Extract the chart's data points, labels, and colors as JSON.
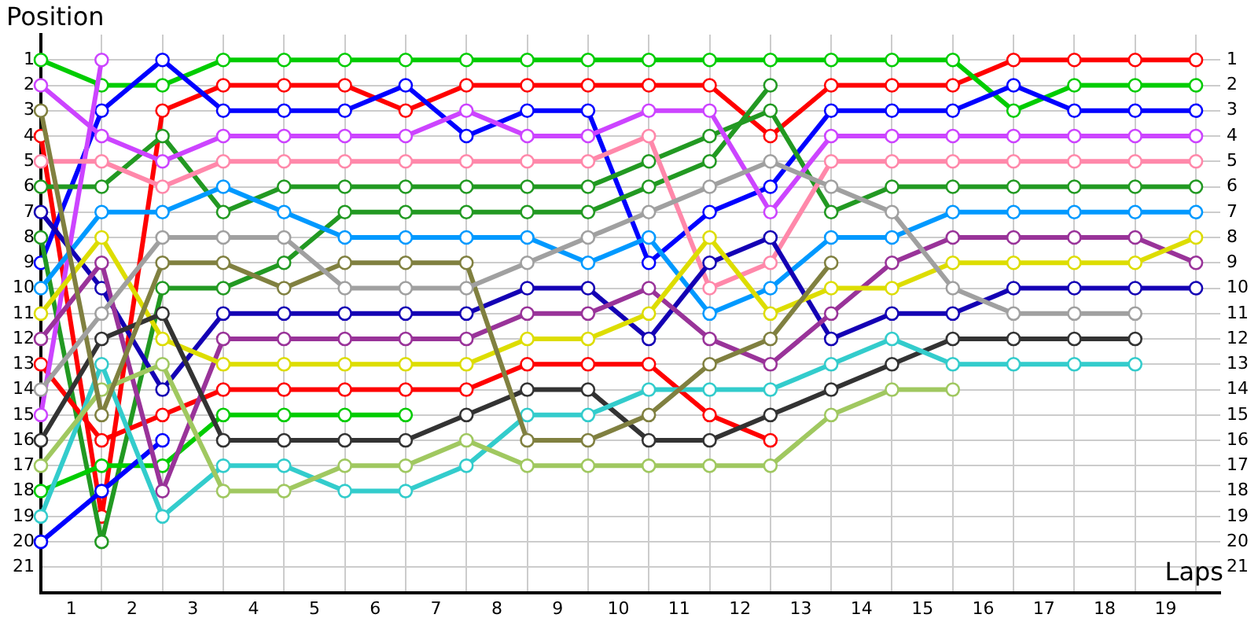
{
  "chart_data": {
    "type": "line",
    "xlabel": "Laps",
    "ylabel": "Position",
    "marker": "circle",
    "grid": true,
    "x": [
      0,
      1,
      2,
      3,
      4,
      5,
      6,
      7,
      8,
      9,
      10,
      11,
      12,
      13,
      14,
      15,
      16,
      17,
      18,
      19
    ],
    "xlim": [
      0,
      19.4
    ],
    "xticks": [
      {
        "value": 0,
        "label": null
      },
      {
        "value": 0.5,
        "label": "1"
      },
      {
        "value": 1,
        "label": null
      },
      {
        "value": 1.5,
        "label": "2"
      },
      {
        "value": 2,
        "label": null
      },
      {
        "value": 2.5,
        "label": "3"
      },
      {
        "value": 3,
        "label": null
      },
      {
        "value": 3.5,
        "label": "4"
      },
      {
        "value": 4,
        "label": null
      },
      {
        "value": 4.5,
        "label": "5"
      },
      {
        "value": 5,
        "label": null
      },
      {
        "value": 5.5,
        "label": "6"
      },
      {
        "value": 6,
        "label": null
      },
      {
        "value": 6.5,
        "label": "7"
      },
      {
        "value": 7,
        "label": null
      },
      {
        "value": 7.5,
        "label": "8"
      },
      {
        "value": 8,
        "label": null
      },
      {
        "value": 8.5,
        "label": "9"
      },
      {
        "value": 9,
        "label": null
      },
      {
        "value": 9.5,
        "label": "10"
      },
      {
        "value": 10,
        "label": null
      },
      {
        "value": 10.5,
        "label": "11"
      },
      {
        "value": 11,
        "label": null
      },
      {
        "value": 11.5,
        "label": "12"
      },
      {
        "value": 12,
        "label": null
      },
      {
        "value": 12.5,
        "label": "13"
      },
      {
        "value": 13,
        "label": null
      },
      {
        "value": 13.5,
        "label": "14"
      },
      {
        "value": 14,
        "label": null
      },
      {
        "value": 14.5,
        "label": "15"
      },
      {
        "value": 15,
        "label": null
      },
      {
        "value": 15.5,
        "label": "16"
      },
      {
        "value": 16,
        "label": null
      },
      {
        "value": 16.5,
        "label": "17"
      },
      {
        "value": 17,
        "label": null
      },
      {
        "value": 17.5,
        "label": "18"
      },
      {
        "value": 18,
        "label": null
      },
      {
        "value": 18.5,
        "label": "19"
      },
      {
        "value": 19,
        "label": null
      }
    ],
    "ylim": [
      22,
      0
    ],
    "yticks": [
      1,
      2,
      3,
      4,
      5,
      6,
      7,
      8,
      9,
      10,
      11,
      12,
      13,
      14,
      15,
      16,
      17,
      18,
      19,
      20,
      21
    ],
    "y2lim": [
      22,
      0
    ],
    "y2ticks": [
      1,
      2,
      3,
      4,
      5,
      6,
      7,
      8,
      9,
      10,
      11,
      12,
      13,
      14,
      15,
      16,
      17,
      18,
      19,
      20,
      21
    ],
    "series": [
      {
        "color": "#a0a0a0",
        "values": [
          14,
          11,
          8,
          8,
          8,
          10,
          10,
          10,
          9,
          8,
          7,
          6,
          5,
          6,
          7,
          10,
          11,
          11,
          11,
          null
        ]
      },
      {
        "color": "#808040",
        "values": [
          3,
          15,
          9,
          9,
          10,
          9,
          9,
          9,
          16,
          16,
          15,
          13,
          12,
          9,
          null,
          null,
          null,
          null,
          null,
          null
        ]
      },
      {
        "color": "#a0c860",
        "values": [
          17,
          14,
          13,
          18,
          18,
          17,
          17,
          16,
          17,
          17,
          17,
          17,
          17,
          15,
          14,
          14,
          null,
          null,
          null,
          null
        ]
      },
      {
        "color": "#33cccc",
        "values": [
          19,
          13,
          19,
          17,
          17,
          18,
          18,
          17,
          15,
          15,
          14,
          14,
          14,
          13,
          12,
          13,
          13,
          13,
          13,
          null
        ]
      },
      {
        "color": "#333333",
        "values": [
          16,
          12,
          11,
          16,
          16,
          16,
          16,
          15,
          14,
          14,
          16,
          16,
          15,
          14,
          13,
          12,
          12,
          12,
          12,
          null
        ]
      },
      {
        "color": "#dddd00",
        "values": [
          11,
          8,
          12,
          13,
          13,
          13,
          13,
          13,
          12,
          12,
          11,
          8,
          11,
          10,
          10,
          9,
          9,
          9,
          9,
          8
        ]
      },
      {
        "color": "#993399",
        "values": [
          12,
          9,
          18,
          12,
          12,
          12,
          12,
          12,
          11,
          11,
          10,
          12,
          13,
          11,
          9,
          8,
          8,
          8,
          8,
          9
        ]
      },
      {
        "color": "#1400b4",
        "values": [
          7,
          10,
          14,
          11,
          11,
          11,
          11,
          11,
          10,
          10,
          12,
          9,
          8,
          12,
          11,
          11,
          10,
          10,
          10,
          10
        ]
      },
      {
        "color": "#0099ff",
        "values": [
          10,
          7,
          7,
          6,
          7,
          8,
          8,
          8,
          8,
          9,
          8,
          11,
          10,
          8,
          8,
          7,
          7,
          7,
          7,
          7
        ]
      },
      {
        "color": "#ff88aa",
        "values": [
          5,
          5,
          6,
          5,
          5,
          5,
          5,
          5,
          5,
          5,
          4,
          10,
          9,
          5,
          5,
          5,
          5,
          5,
          5,
          5
        ]
      },
      {
        "color": "#cc44ff",
        "values": [
          2,
          4,
          5,
          4,
          4,
          4,
          4,
          3,
          4,
          4,
          3,
          3,
          7,
          4,
          4,
          4,
          4,
          4,
          4,
          4
        ]
      },
      {
        "color": "#cc44ff",
        "values": [
          15,
          1,
          null,
          null,
          null,
          null,
          null,
          null,
          null,
          null,
          null,
          null,
          null,
          null,
          null,
          null,
          null,
          null,
          null,
          null
        ]
      },
      {
        "color": "#0000ff",
        "values": [
          20,
          18,
          16,
          null,
          null,
          null,
          null,
          null,
          null,
          null,
          null,
          null,
          null,
          null,
          null,
          null,
          null,
          null,
          null,
          null
        ]
      },
      {
        "color": "#00cc00",
        "values": [
          18,
          17,
          17,
          15,
          15,
          15,
          15,
          null,
          null,
          null,
          null,
          null,
          null,
          null,
          null,
          null,
          null,
          null,
          null,
          null
        ]
      },
      {
        "color": "#ff0000",
        "values": [
          13,
          16,
          15,
          14,
          14,
          14,
          14,
          14,
          13,
          13,
          13,
          15,
          16,
          null,
          null,
          null,
          null,
          null,
          null,
          null
        ]
      },
      {
        "color": "#229922",
        "values": [
          8,
          20,
          10,
          10,
          9,
          7,
          7,
          7,
          7,
          7,
          6,
          5,
          2,
          null,
          null,
          null,
          null,
          null,
          null,
          null
        ]
      },
      {
        "color": "#229922",
        "values": [
          6,
          6,
          4,
          7,
          6,
          6,
          6,
          6,
          6,
          6,
          5,
          4,
          3,
          7,
          6,
          6,
          6,
          6,
          6,
          6
        ]
      },
      {
        "color": "#0000ff",
        "values": [
          9,
          3,
          1,
          3,
          3,
          3,
          2,
          4,
          3,
          3,
          9,
          7,
          6,
          3,
          3,
          3,
          2,
          3,
          3,
          3
        ]
      },
      {
        "color": "#00cc00",
        "values": [
          1,
          2,
          2,
          1,
          1,
          1,
          1,
          1,
          1,
          1,
          1,
          1,
          1,
          1,
          1,
          1,
          3,
          2,
          2,
          2
        ]
      },
      {
        "color": "#ff0000",
        "values": [
          4,
          19,
          3,
          2,
          2,
          2,
          3,
          2,
          2,
          2,
          2,
          2,
          4,
          2,
          2,
          2,
          1,
          1,
          1,
          1
        ]
      }
    ]
  }
}
